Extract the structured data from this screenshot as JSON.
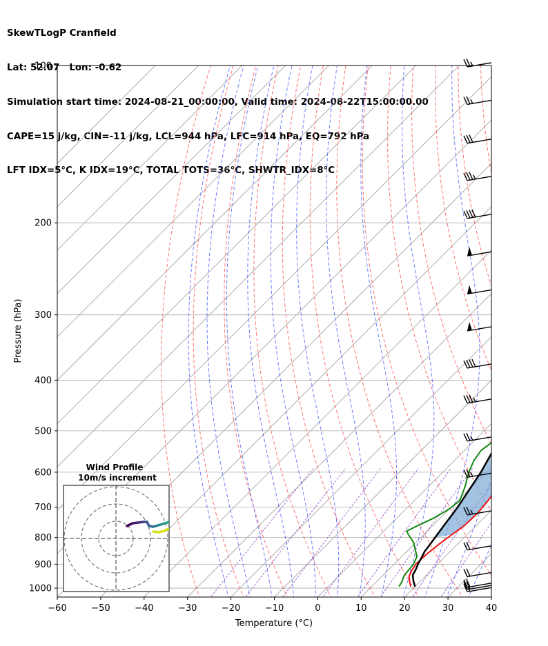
{
  "header": {
    "lines": [
      "SkewTLogP Cranfield",
      "Lat: 52.07   Lon: -0.62",
      "Simulation start time: 2024-08-21_00:00:00, Valid time: 2024-08-22T15:00:00.00",
      "CAPE=15 j/kg, CIN=-11 j/kg, LCL=944 hPa, LFC=914 hPa, EQ=792 hPa",
      "LFT IDX=5°C, K IDX=19°C, TOTAL TOTS=36°C, SHWTR_IDX=8°C"
    ]
  },
  "chart_data": {
    "type": "line",
    "subtype": "skew-t-log-p",
    "xlabel": "Temperature (°C)",
    "ylabel": "Pressure (hPa)",
    "xlim": [
      -60,
      40
    ],
    "ylim": [
      1040,
      100
    ],
    "y_scale": "log",
    "x_ticks": [
      "−60",
      "−50",
      "−40",
      "−30",
      "−20",
      "−10",
      "0",
      "10",
      "20",
      "30",
      "40"
    ],
    "y_ticks": [
      "100",
      "200",
      "300",
      "400",
      "500",
      "600",
      "700",
      "800",
      "900",
      "1000"
    ],
    "y_tick_values": [
      100,
      200,
      300,
      400,
      500,
      600,
      700,
      800,
      900,
      1000
    ],
    "colors": {
      "temperature": "#ee1111",
      "dewpoint": "#118811",
      "parcel": "#000000",
      "cape_fill": "#7aa9d4",
      "dry_adiabat": "#ff5a5a",
      "moist_adiabat": "#3c50ff",
      "mixing_ratio": "#9040c0",
      "isotherm": "#999999"
    },
    "series": [
      {
        "role": "temperature",
        "points": [
          [
            19.0,
            993
          ],
          [
            17.5,
            970
          ],
          [
            16.2,
            948
          ],
          [
            15.5,
            924
          ],
          [
            15.0,
            900
          ],
          [
            15.2,
            860
          ],
          [
            15.8,
            820
          ],
          [
            16.5,
            790
          ],
          [
            17.3,
            760
          ],
          [
            17.5,
            720
          ],
          [
            17.0,
            680
          ],
          [
            16.3,
            650
          ],
          [
            15.3,
            610
          ],
          [
            14.0,
            570
          ],
          [
            12.0,
            525
          ],
          [
            10.5,
            490
          ],
          [
            9.0,
            460
          ],
          [
            7.5,
            430
          ],
          [
            5.5,
            400
          ],
          [
            3.5,
            370
          ],
          [
            1.0,
            340
          ],
          [
            -1.5,
            310
          ],
          [
            -4.0,
            282
          ],
          [
            -8.0,
            254
          ],
          [
            -11.0,
            234
          ],
          [
            -12.5,
            215
          ],
          [
            -13.5,
            200
          ],
          [
            -16.5,
            185
          ],
          [
            -18.0,
            170
          ],
          [
            -21.0,
            150
          ],
          [
            -24.0,
            137
          ],
          [
            -28.0,
            123
          ],
          [
            -29.0,
            117
          ],
          [
            -29.5,
            111
          ],
          [
            -31.0,
            100
          ]
        ]
      },
      {
        "role": "dewpoint",
        "points": [
          [
            16.3,
            993
          ],
          [
            15.8,
            970
          ],
          [
            15.0,
            948
          ],
          [
            14.7,
            924
          ],
          [
            14.5,
            900
          ],
          [
            13.5,
            870
          ],
          [
            12.0,
            850
          ],
          [
            9.5,
            818
          ],
          [
            6.5,
            790
          ],
          [
            5.3,
            778
          ],
          [
            6.5,
            760
          ],
          [
            8.5,
            735
          ],
          [
            10.0,
            705
          ],
          [
            10.5,
            680
          ],
          [
            8.5,
            640
          ],
          [
            6.0,
            600
          ],
          [
            4.5,
            570
          ],
          [
            3.8,
            545
          ],
          [
            4.8,
            515
          ],
          [
            6.5,
            490
          ],
          [
            7.3,
            470
          ],
          [
            5.5,
            445
          ],
          [
            3.0,
            425
          ],
          [
            0.0,
            400
          ],
          [
            -2.5,
            380
          ],
          [
            -4.5,
            362
          ],
          [
            -5.5,
            345
          ],
          [
            -6.0,
            325
          ],
          [
            -7.0,
            306
          ],
          [
            -8.0,
            284
          ],
          [
            -10.0,
            265
          ],
          [
            -11.5,
            250
          ],
          [
            -13.0,
            238
          ],
          [
            -14.0,
            227
          ],
          [
            -15.5,
            216
          ],
          [
            -17.0,
            212
          ],
          [
            -20.0,
            200
          ],
          [
            -23.5,
            190
          ],
          [
            -28.0,
            175
          ],
          [
            -36.5,
            170
          ],
          [
            -43.0,
            170
          ],
          [
            -30.5,
            128
          ],
          [
            -27.0,
            113
          ],
          [
            -24.0,
            100
          ]
        ]
      },
      {
        "role": "parcel",
        "points": [
          [
            20.0,
            993
          ],
          [
            18.4,
            970
          ],
          [
            16.8,
            944
          ],
          [
            16.2,
            920
          ],
          [
            15.5,
            900
          ],
          [
            14.7,
            870
          ],
          [
            14.1,
            850
          ],
          [
            13.8,
            830
          ],
          [
            13.3,
            800
          ],
          [
            12.6,
            760
          ],
          [
            11.5,
            700
          ],
          [
            10.2,
            650
          ],
          [
            8.8,
            600
          ],
          [
            7.0,
            555
          ],
          [
            4.8,
            505
          ],
          [
            2.5,
            460
          ],
          [
            0.3,
            425
          ],
          [
            -2.2,
            392
          ],
          [
            -5.4,
            358
          ],
          [
            -9.4,
            322
          ],
          [
            -14.2,
            285
          ],
          [
            -19.8,
            250
          ],
          [
            -26.1,
            217
          ],
          [
            -33.4,
            184
          ],
          [
            -41.7,
            150
          ],
          [
            -47.5,
            128
          ],
          [
            -51.9,
            112
          ],
          [
            -54.8,
            100
          ]
        ]
      }
    ],
    "wind_barbs": {
      "pressures": [
        100,
        118,
        140,
        165,
        195,
        230,
        272,
        320,
        377,
        440,
        520,
        610,
        720,
        840,
        945,
        990,
        1000,
        1010
      ],
      "speeds_kt": [
        25,
        25,
        30,
        35,
        40,
        50,
        50,
        50,
        40,
        35,
        25,
        25,
        25,
        20,
        20,
        20,
        20,
        15
      ]
    },
    "inset": {
      "title": "Wind Profile",
      "subtitle": "10m/s increment"
    }
  }
}
